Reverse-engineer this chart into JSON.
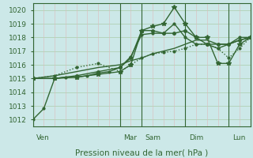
{
  "title": "",
  "xlabel": "Pression niveau de la mer( hPa )",
  "background_color": "#cce8e8",
  "grid_h_color": "#aaccaa",
  "grid_v_color": "#ddbbbb",
  "line_color": "#336633",
  "ylim": [
    1011.5,
    1020.5
  ],
  "yticks": [
    1012,
    1013,
    1014,
    1015,
    1016,
    1017,
    1018,
    1019,
    1020
  ],
  "xlim": [
    0,
    120
  ],
  "day_lines_x": [
    0,
    48,
    60,
    84,
    108,
    120
  ],
  "day_labels": [
    {
      "x": 2,
      "label": "Ven"
    },
    {
      "x": 50,
      "label": "Mar"
    },
    {
      "x": 62,
      "label": "Sam"
    },
    {
      "x": 86,
      "label": "Dim"
    },
    {
      "x": 110,
      "label": "Lun"
    }
  ],
  "series": [
    {
      "xy": [
        [
          0,
          1012.0
        ],
        [
          6,
          1012.8
        ],
        [
          12,
          1015.0
        ],
        [
          18,
          1015.1
        ],
        [
          24,
          1015.1
        ],
        [
          30,
          1015.2
        ],
        [
          36,
          1015.4
        ],
        [
          42,
          1015.5
        ],
        [
          48,
          1015.8
        ],
        [
          54,
          1016.6
        ],
        [
          60,
          1018.2
        ],
        [
          66,
          1018.3
        ],
        [
          72,
          1018.3
        ],
        [
          78,
          1019.0
        ],
        [
          84,
          1018.0
        ],
        [
          90,
          1017.5
        ],
        [
          96,
          1017.5
        ],
        [
          102,
          1017.2
        ],
        [
          108,
          1017.5
        ],
        [
          114,
          1018.0
        ],
        [
          120,
          1018.0
        ]
      ],
      "marker": "o",
      "ms": 2.0,
      "ls": "-",
      "lw": 1.0
    },
    {
      "xy": [
        [
          0,
          1015.0
        ],
        [
          12,
          1015.0
        ],
        [
          24,
          1015.1
        ],
        [
          36,
          1015.3
        ],
        [
          48,
          1015.5
        ],
        [
          54,
          1016.0
        ],
        [
          60,
          1018.5
        ],
        [
          66,
          1018.8
        ],
        [
          72,
          1019.0
        ],
        [
          78,
          1020.2
        ],
        [
          84,
          1019.0
        ],
        [
          90,
          1018.0
        ],
        [
          96,
          1018.0
        ],
        [
          102,
          1016.1
        ],
        [
          108,
          1016.1
        ],
        [
          114,
          1017.5
        ],
        [
          120,
          1018.0
        ]
      ],
      "marker": "*",
      "ms": 4.0,
      "ls": "-",
      "lw": 1.0
    },
    {
      "xy": [
        [
          0,
          1015.0
        ],
        [
          12,
          1015.0
        ],
        [
          24,
          1015.2
        ],
        [
          36,
          1015.5
        ],
        [
          48,
          1015.8
        ],
        [
          54,
          1016.5
        ],
        [
          60,
          1018.5
        ],
        [
          66,
          1018.5
        ],
        [
          72,
          1018.3
        ],
        [
          78,
          1018.3
        ],
        [
          84,
          1018.5
        ],
        [
          90,
          1018.0
        ],
        [
          96,
          1017.5
        ],
        [
          102,
          1017.5
        ],
        [
          108,
          1017.5
        ],
        [
          114,
          1017.8
        ],
        [
          120,
          1018.0
        ]
      ],
      "marker": "o",
      "ms": 2.5,
      "ls": "-",
      "lw": 1.0
    },
    {
      "xy": [
        [
          0,
          1015.0
        ],
        [
          12,
          1015.2
        ],
        [
          24,
          1015.5
        ],
        [
          36,
          1015.8
        ],
        [
          48,
          1016.0
        ],
        [
          54,
          1016.3
        ],
        [
          60,
          1016.5
        ],
        [
          66,
          1016.8
        ],
        [
          72,
          1017.0
        ],
        [
          78,
          1017.2
        ],
        [
          84,
          1017.5
        ],
        [
          90,
          1017.8
        ],
        [
          96,
          1017.8
        ],
        [
          102,
          1017.5
        ],
        [
          108,
          1017.5
        ],
        [
          114,
          1017.8
        ],
        [
          120,
          1018.0
        ]
      ],
      "marker": "o",
      "ms": 0,
      "ls": "-",
      "lw": 1.0
    },
    {
      "xy": [
        [
          0,
          1015.0
        ],
        [
          12,
          1015.2
        ],
        [
          24,
          1015.8
        ],
        [
          36,
          1016.1
        ],
        [
          48,
          1015.5
        ],
        [
          54,
          1016.0
        ],
        [
          60,
          1016.5
        ],
        [
          66,
          1016.8
        ],
        [
          72,
          1016.9
        ],
        [
          78,
          1017.0
        ],
        [
          84,
          1017.2
        ],
        [
          90,
          1017.5
        ],
        [
          96,
          1017.5
        ],
        [
          102,
          1017.2
        ],
        [
          108,
          1016.5
        ],
        [
          114,
          1017.2
        ],
        [
          120,
          1018.0
        ]
      ],
      "marker": "o",
      "ms": 2.0,
      "ls": ":",
      "lw": 1.0
    }
  ]
}
